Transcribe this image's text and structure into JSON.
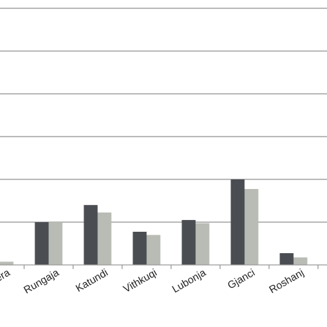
{
  "chart_data": {
    "type": "bar",
    "categories": [
      "Shera",
      "Rungaja",
      "Katundi",
      "Vithkuqi",
      "Lubonja",
      "Gjanci",
      "Roshanj"
    ],
    "series": [
      {
        "values": [
          0.15,
          2.0,
          2.8,
          1.55,
          2.1,
          4.0,
          0.55
        ]
      },
      {
        "values": [
          0.15,
          2.0,
          2.45,
          1.4,
          1.95,
          3.55,
          0.35
        ]
      }
    ],
    "ylim": [
      0,
      12
    ],
    "grid": true,
    "legend": "none",
    "colors": [
      "#4a4d52",
      "#b8bcb4"
    ],
    "grid_color": "#8f8f8f",
    "axis_color": "#9a9a9a"
  }
}
